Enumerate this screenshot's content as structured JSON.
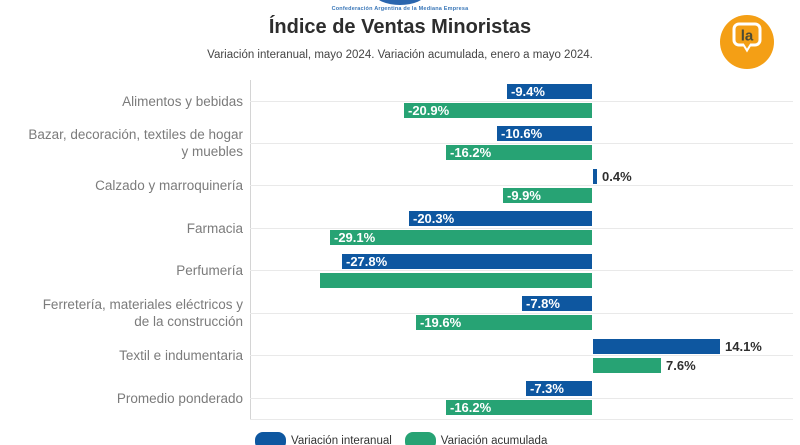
{
  "header": {
    "org_name": "Confederación Argentina de la Mediana Empresa",
    "title": "Índice de Ventas Minoristas",
    "subtitle": "Variación interanual, mayo 2024. Variación acumulada, enero a mayo 2024.",
    "badge_text": "la"
  },
  "colors": {
    "interanual_blue": "#0e57a0",
    "acumulada_green": "#27a374",
    "badge_orange": "#F49F15",
    "badge_text_dark": "#4b4b35",
    "category_label_gray": "#7b7b7b",
    "gridline_gray": "#e9e9e9",
    "logo_blue": "#2b66ae"
  },
  "legend": {
    "items": [
      {
        "label": "Variación interanual",
        "color": "#0e57a0"
      },
      {
        "label": "Variación acumulada",
        "color": "#27a374"
      }
    ]
  },
  "chart_data": {
    "type": "bar",
    "orientation": "horizontal",
    "title": "Índice de Ventas Minoristas",
    "subtitle": "Variación interanual, mayo 2024. Variación acumulada, enero a mayo 2024.",
    "unit": "%",
    "xlim": [
      -38,
      22
    ],
    "grid": "horizontal-category-lines",
    "legend_position": "bottom",
    "categories": [
      [
        "Alimentos y bebidas"
      ],
      [
        "Bazar, decoración, textiles de hogar",
        "y muebles"
      ],
      [
        "Calzado y marroquinería"
      ],
      [
        "Farmacia"
      ],
      [
        "Perfumería"
      ],
      [
        "Ferretería, materiales eléctricos y",
        "de la construcción"
      ],
      [
        "Textil e indumentaria"
      ],
      [
        "Promedio ponderado"
      ]
    ],
    "series": [
      {
        "name": "Variación interanual",
        "color": "#0e57a0",
        "values": [
          -9.4,
          -10.6,
          0.4,
          -20.3,
          -27.8,
          -7.8,
          14.1,
          -7.3
        ],
        "labels": [
          "-9.4%",
          "-10.6%",
          "0.4%",
          "-20.3%",
          "-27.8%",
          "-7.8%",
          "14.1%",
          "-7.3%"
        ]
      },
      {
        "name": "Variación acumulada",
        "color": "#27a374",
        "values": [
          -20.9,
          -16.2,
          -9.9,
          -29.1,
          -30.2,
          -19.6,
          7.6,
          -16.2
        ],
        "labels": [
          "-20.9%",
          "-16.2%",
          "-9.9%",
          "-29.1%",
          "",
          "-19.6%",
          "7.6%",
          "-16.2%"
        ]
      }
    ]
  }
}
